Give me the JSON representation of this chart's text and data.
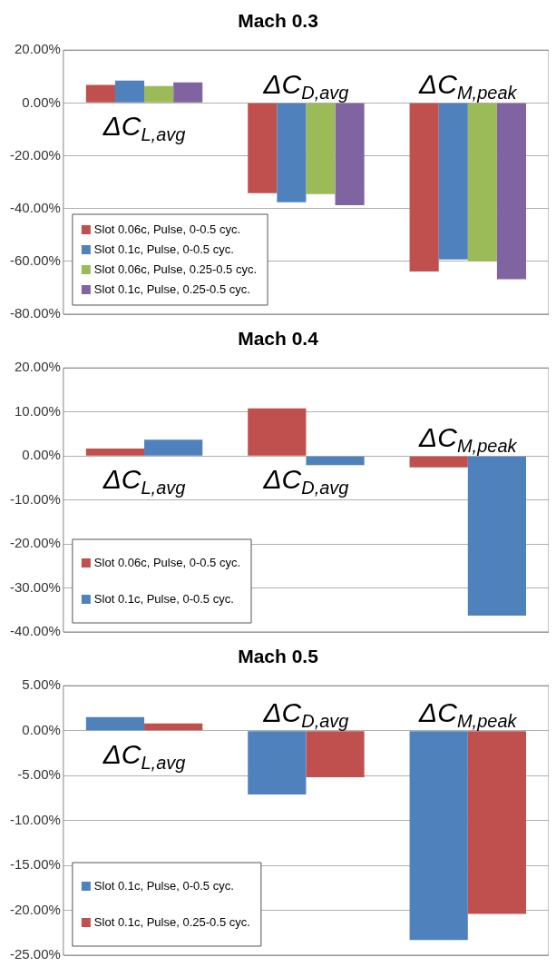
{
  "chart_data": [
    {
      "type": "bar",
      "title": "Mach 0.3",
      "categories": [
        "ΔC$_{L,avg}$",
        "ΔC$_{D,avg}$",
        "ΔC$_{M,peak}$"
      ],
      "series": [
        {
          "name": "Slot 0.06c, Pulse, 0-0.5 cyc.",
          "color": "#c0504d",
          "values": [
            6.8,
            -34.2,
            -63.8
          ]
        },
        {
          "name": "Slot 0.1c, Pulse, 0-0.5 cyc.",
          "color": "#4f81bd",
          "values": [
            8.5,
            -37.6,
            -59.3
          ]
        },
        {
          "name": "Slot 0.06c, Pulse, 0.25-0.5 cyc.",
          "color": "#9bbb59",
          "values": [
            6.4,
            -34.5,
            -60.0
          ]
        },
        {
          "name": "Slot 0.1c, Pulse, 0.25-0.5 cyc.",
          "color": "#8064a2",
          "values": [
            7.8,
            -38.7,
            -66.8
          ]
        }
      ],
      "ylim": [
        -80,
        20
      ],
      "yticks": [
        {
          "value": -80,
          "label": "-80.00%"
        },
        {
          "value": -60,
          "label": "-60.00%"
        },
        {
          "value": -40,
          "label": "-40.00%"
        },
        {
          "value": -20,
          "label": "-20.00%"
        },
        {
          "value": 0,
          "label": "0.00%"
        },
        {
          "value": 20,
          "label": "20.00%"
        }
      ],
      "grid": "y",
      "legend": "bottom left"
    },
    {
      "type": "bar",
      "title": "Mach 0.4",
      "categories": [
        "ΔC$_{L,avg}$",
        "ΔC$_{D,avg}$",
        "ΔC$_{M,peak}$"
      ],
      "series": [
        {
          "name": "Slot 0.06c, Pulse, 0-0.5 cyc.",
          "color": "#c0504d",
          "values": [
            1.7,
            10.8,
            -2.6
          ]
        },
        {
          "name": "Slot 0.1c, Pulse, 0-0.5 cyc.",
          "color": "#4f81bd",
          "values": [
            3.7,
            -2.1,
            -36.3
          ]
        }
      ],
      "ylim": [
        -40,
        20
      ],
      "yticks": [
        {
          "value": -40,
          "label": "-40.00%"
        },
        {
          "value": -30,
          "label": "-30.00%"
        },
        {
          "value": -20,
          "label": "-20.00%"
        },
        {
          "value": -10,
          "label": "-10.00%"
        },
        {
          "value": 0,
          "label": "0.00%"
        },
        {
          "value": 10,
          "label": "10.00%"
        },
        {
          "value": 20,
          "label": "20.00%"
        }
      ],
      "grid": "y",
      "legend": "bottom left"
    },
    {
      "type": "bar",
      "title": "Mach 0.5",
      "categories": [
        "ΔC$_{L,avg}$",
        "ΔC$_{D,avg}$",
        "ΔC$_{M,peak}$"
      ],
      "series": [
        {
          "name": "Slot 0.1c, Pulse, 0-0.5 cyc.",
          "color": "#4f81bd",
          "values": [
            1.5,
            -7.1,
            -23.3
          ]
        },
        {
          "name": "Slot 0.1c, Pulse, 0.25-0.5 cyc.",
          "color": "#c0504d",
          "values": [
            0.8,
            -5.2,
            -20.4
          ]
        }
      ],
      "ylim": [
        -25,
        5
      ],
      "yticks": [
        {
          "value": -25,
          "label": "-25.00%"
        },
        {
          "value": -20,
          "label": "-20.00%"
        },
        {
          "value": -15,
          "label": "-15.00%"
        },
        {
          "value": -10,
          "label": "-10.00%"
        },
        {
          "value": -5,
          "label": "-5.00%"
        },
        {
          "value": 0,
          "label": "0.00%"
        },
        {
          "value": 5,
          "label": "5.00%"
        }
      ],
      "grid": "y",
      "legend": "bottom left"
    }
  ]
}
